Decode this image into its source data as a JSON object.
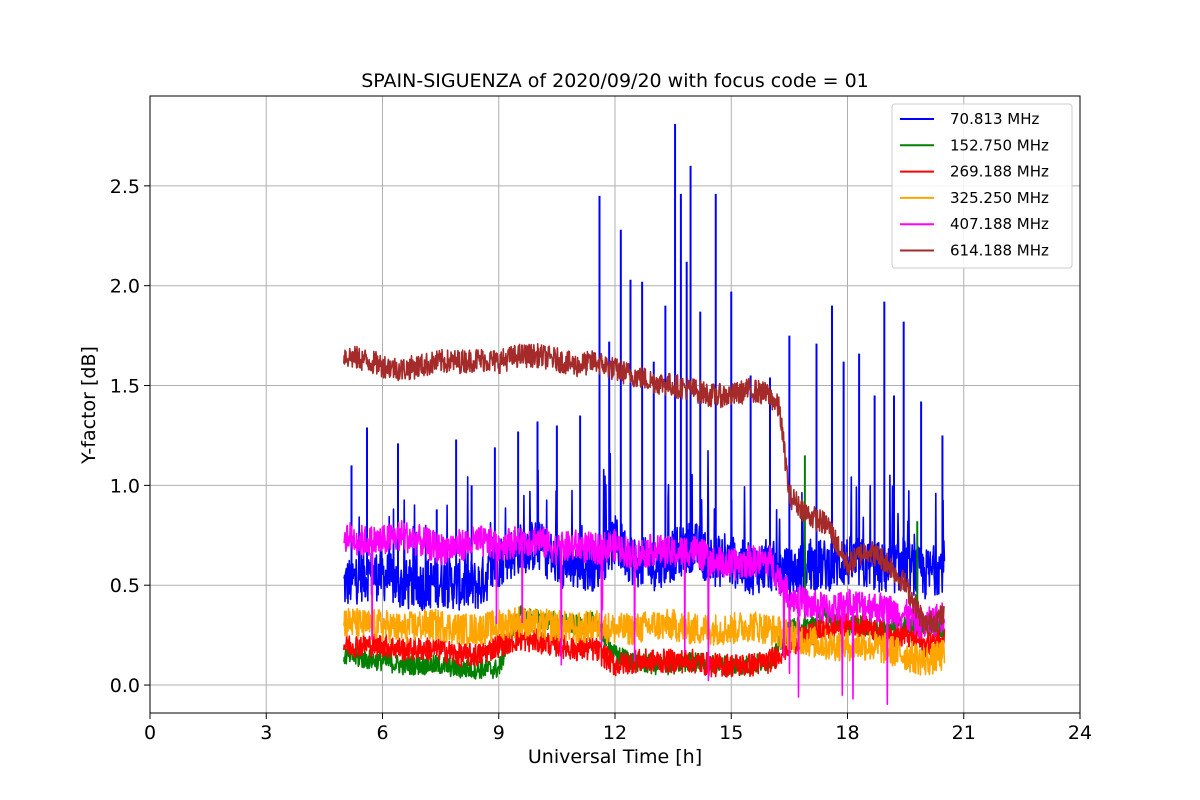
{
  "chart_data": {
    "type": "line",
    "title": "SPAIN-SIGUENZA of 2020/09/20 with focus code = 01",
    "xlabel": "Universal Time [h]",
    "ylabel": "Y-factor [dB]",
    "xlim": [
      0,
      24
    ],
    "ylim": [
      -0.14,
      2.95
    ],
    "x_ticks": [
      "0",
      "3",
      "6",
      "9",
      "12",
      "15",
      "18",
      "21",
      "24"
    ],
    "y_ticks": [
      "0.0",
      "0.5",
      "1.0",
      "1.5",
      "2.0",
      "2.5"
    ],
    "grid": true,
    "legend_position": "top-right",
    "series": [
      {
        "name": " 70.813 MHz",
        "color": "#0000ff",
        "x": [
          5.0,
          5.5,
          6.0,
          6.5,
          7.0,
          7.5,
          8.0,
          8.5,
          9.0,
          9.5,
          10.0,
          10.5,
          11.0,
          11.5,
          12.0,
          12.5,
          13.0,
          13.5,
          14.0,
          14.5,
          15.0,
          15.5,
          16.0,
          16.5,
          17.0,
          17.5,
          18.0,
          18.5,
          19.0,
          19.5,
          20.0,
          20.5
        ],
        "values": [
          0.5,
          0.55,
          0.55,
          0.5,
          0.5,
          0.52,
          0.5,
          0.5,
          0.62,
          0.68,
          0.7,
          0.62,
          0.6,
          0.6,
          0.72,
          0.62,
          0.6,
          0.65,
          0.7,
          0.62,
          0.62,
          0.58,
          0.6,
          0.55,
          0.6,
          0.6,
          0.62,
          0.6,
          0.58,
          0.6,
          0.55,
          0.6
        ],
        "peaks": [
          [
            5.2,
            1.1
          ],
          [
            5.6,
            1.29
          ],
          [
            6.4,
            1.21
          ],
          [
            7.4,
            0.88
          ],
          [
            7.9,
            1.23
          ],
          [
            8.3,
            1.0
          ],
          [
            8.9,
            1.19
          ],
          [
            9.5,
            1.27
          ],
          [
            10.0,
            1.32
          ],
          [
            10.5,
            1.3
          ],
          [
            11.1,
            1.35
          ],
          [
            11.6,
            2.45
          ],
          [
            11.85,
            1.72
          ],
          [
            12.15,
            2.28
          ],
          [
            12.4,
            2.03
          ],
          [
            12.7,
            2.02
          ],
          [
            13.0,
            1.62
          ],
          [
            13.3,
            1.9
          ],
          [
            13.55,
            2.81
          ],
          [
            13.7,
            2.46
          ],
          [
            13.85,
            2.12
          ],
          [
            13.95,
            2.6
          ],
          [
            14.2,
            1.87
          ],
          [
            14.6,
            2.46
          ],
          [
            15.0,
            1.97
          ],
          [
            15.5,
            1.55
          ],
          [
            16.0,
            1.54
          ],
          [
            16.5,
            1.75
          ],
          [
            17.2,
            1.71
          ],
          [
            17.6,
            1.9
          ],
          [
            17.9,
            1.62
          ],
          [
            18.3,
            1.66
          ],
          [
            18.7,
            1.45
          ],
          [
            18.95,
            1.92
          ],
          [
            19.2,
            1.45
          ],
          [
            19.45,
            1.82
          ],
          [
            19.9,
            1.42
          ],
          [
            20.45,
            1.25
          ]
        ]
      },
      {
        "name": "152.750 MHz",
        "color": "#008000",
        "x": [
          5.0,
          5.5,
          6.0,
          6.5,
          7.0,
          7.5,
          8.0,
          8.5,
          9.0,
          9.5,
          10.0,
          10.5,
          11.0,
          11.5,
          12.0,
          12.5,
          13.0,
          13.5,
          14.0,
          14.5,
          15.0,
          15.5,
          16.0,
          16.5,
          17.0,
          17.5,
          18.0,
          18.5,
          19.0,
          19.5,
          20.0,
          20.5
        ],
        "values": [
          0.15,
          0.13,
          0.12,
          0.1,
          0.1,
          0.1,
          0.08,
          0.08,
          0.08,
          0.35,
          0.33,
          0.32,
          0.3,
          0.32,
          0.15,
          0.12,
          0.1,
          0.1,
          0.12,
          0.1,
          0.1,
          0.1,
          0.12,
          0.28,
          0.3,
          0.35,
          0.3,
          0.3,
          0.28,
          0.3,
          0.3,
          0.28
        ],
        "peaks": [
          [
            16.9,
            1.15
          ],
          [
            19.8,
            0.82
          ]
        ]
      },
      {
        "name": "269.188 MHz",
        "color": "#ff0000",
        "x": [
          5.0,
          5.5,
          6.0,
          6.5,
          7.0,
          7.5,
          8.0,
          8.5,
          9.0,
          9.5,
          10.0,
          10.5,
          11.0,
          11.5,
          12.0,
          12.5,
          13.0,
          13.5,
          14.0,
          14.5,
          15.0,
          15.5,
          16.0,
          16.5,
          17.0,
          17.5,
          18.0,
          18.5,
          19.0,
          19.5,
          20.0,
          20.5
        ],
        "values": [
          0.2,
          0.2,
          0.2,
          0.18,
          0.18,
          0.18,
          0.15,
          0.15,
          0.2,
          0.23,
          0.22,
          0.2,
          0.18,
          0.18,
          0.1,
          0.12,
          0.12,
          0.12,
          0.12,
          0.1,
          0.1,
          0.1,
          0.12,
          0.2,
          0.25,
          0.28,
          0.3,
          0.3,
          0.25,
          0.25,
          0.2,
          0.25
        ],
        "peaks": []
      },
      {
        "name": "325.250 MHz",
        "color": "#ffa500",
        "x": [
          5.0,
          5.5,
          6.0,
          6.5,
          7.0,
          7.5,
          8.0,
          8.5,
          9.0,
          9.5,
          10.0,
          10.5,
          11.0,
          11.5,
          12.0,
          12.5,
          13.0,
          13.5,
          14.0,
          14.5,
          15.0,
          15.5,
          16.0,
          16.5,
          17.0,
          17.5,
          18.0,
          18.5,
          19.0,
          19.5,
          20.0,
          20.5
        ],
        "values": [
          0.32,
          0.3,
          0.3,
          0.28,
          0.3,
          0.3,
          0.28,
          0.28,
          0.3,
          0.32,
          0.3,
          0.3,
          0.28,
          0.3,
          0.28,
          0.28,
          0.3,
          0.3,
          0.28,
          0.28,
          0.28,
          0.3,
          0.28,
          0.25,
          0.22,
          0.2,
          0.2,
          0.2,
          0.18,
          0.15,
          0.12,
          0.15
        ],
        "peaks": []
      },
      {
        "name": "407.188 MHz",
        "color": "#ff00ff",
        "x": [
          5.0,
          5.5,
          6.0,
          6.5,
          7.0,
          7.5,
          8.0,
          8.5,
          9.0,
          9.5,
          10.0,
          10.5,
          11.0,
          11.5,
          12.0,
          12.5,
          13.0,
          13.5,
          14.0,
          14.5,
          15.0,
          15.5,
          16.0,
          16.5,
          17.0,
          17.5,
          18.0,
          18.5,
          19.0,
          19.5,
          20.0,
          20.5
        ],
        "values": [
          0.75,
          0.72,
          0.72,
          0.75,
          0.72,
          0.68,
          0.7,
          0.72,
          0.7,
          0.72,
          0.73,
          0.68,
          0.7,
          0.68,
          0.7,
          0.65,
          0.68,
          0.66,
          0.68,
          0.62,
          0.6,
          0.62,
          0.62,
          0.45,
          0.4,
          0.38,
          0.4,
          0.4,
          0.38,
          0.35,
          0.3,
          0.35
        ],
        "peaks": []
      },
      {
        "name": "614.188 MHz",
        "color": "#a52a2a",
        "x": [
          5.0,
          5.5,
          6.0,
          6.5,
          7.0,
          7.5,
          8.0,
          8.5,
          9.0,
          9.5,
          10.0,
          10.5,
          11.0,
          11.5,
          12.0,
          12.5,
          13.0,
          13.5,
          14.0,
          14.5,
          15.0,
          15.5,
          16.0,
          16.25,
          16.5,
          17.0,
          17.5,
          18.0,
          18.5,
          19.0,
          19.5,
          20.0,
          20.5
        ],
        "values": [
          1.65,
          1.63,
          1.6,
          1.58,
          1.6,
          1.62,
          1.62,
          1.63,
          1.62,
          1.65,
          1.65,
          1.63,
          1.6,
          1.62,
          1.58,
          1.55,
          1.52,
          1.5,
          1.48,
          1.45,
          1.45,
          1.48,
          1.45,
          1.38,
          0.95,
          0.85,
          0.8,
          0.6,
          0.68,
          0.62,
          0.5,
          0.3,
          0.35
        ],
        "peaks": []
      }
    ]
  }
}
